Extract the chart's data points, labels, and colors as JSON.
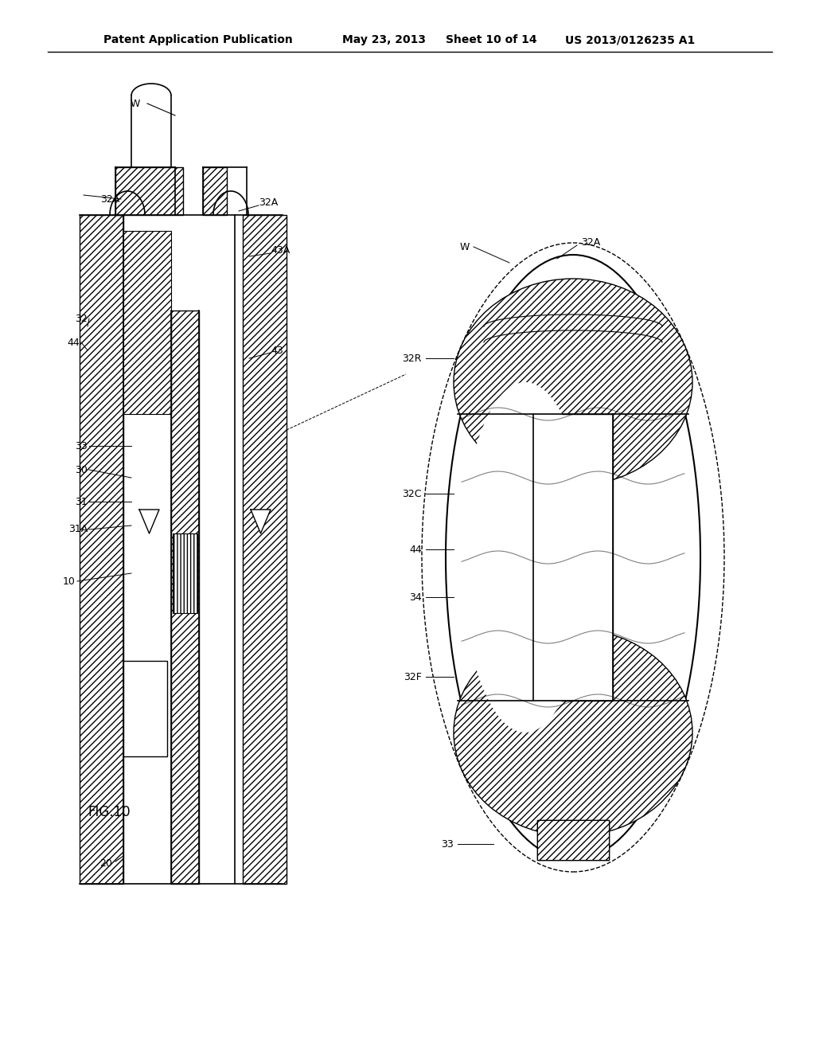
{
  "bg_color": "#ffffff",
  "line_color": "#000000",
  "hatch_color": "#000000",
  "header_text": "Patent Application Publication",
  "header_date": "May 23, 2013",
  "header_sheet": "Sheet 10 of 14",
  "header_patent": "US 2013/0126235 A1",
  "fig_label": "FIG.10",
  "labels": {
    "W_top": "W",
    "32A_topleft": "32A",
    "32A_topright": "32A",
    "32": "32",
    "44_left": "44",
    "43A": "43A",
    "43": "43",
    "33": "33",
    "30": "30",
    "31": "31",
    "31A": "31A",
    "10": "10",
    "20": "20",
    "W_right": "W",
    "32A_right": "32A",
    "32R": "32R",
    "32C": "32C",
    "44_right": "44",
    "34": "34",
    "32F": "32F",
    "33_bottom": "33"
  }
}
